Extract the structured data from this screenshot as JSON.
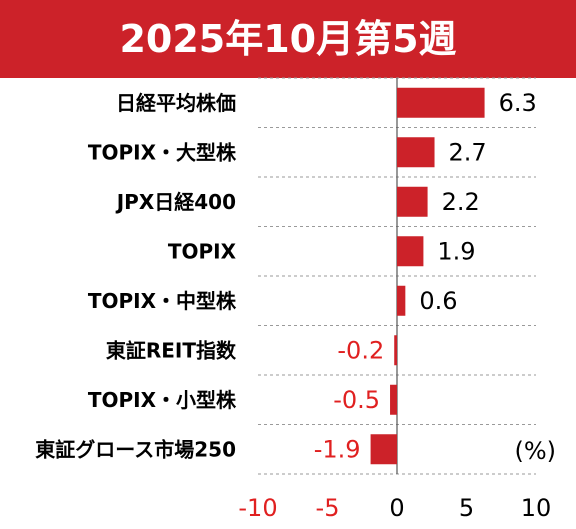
{
  "chart_data": {
    "type": "bar",
    "orientation": "horizontal",
    "title": "2025年10月第5週",
    "unit": "(%)",
    "categories": [
      "日経平均株価",
      "TOPIX・大型株",
      "JPX日経400",
      "TOPIX",
      "TOPIX・中型株",
      "東証REIT指数",
      "TOPIX・小型株",
      "東証グロース市場250"
    ],
    "values": [
      6.3,
      2.7,
      2.2,
      1.9,
      0.6,
      -0.2,
      -0.5,
      -1.9
    ],
    "value_labels": [
      "6.3",
      "2.7",
      "2.2",
      "1.9",
      "0.6",
      "-0.2",
      "-0.5",
      "-1.9"
    ],
    "xlim": [
      -10,
      10
    ],
    "xticks": [
      -10,
      -5,
      0,
      5,
      10
    ],
    "xtick_labels": [
      "-10",
      "-5",
      "0",
      "5",
      "10"
    ],
    "grid": "horizontal dashed",
    "colors": {
      "title_bg": "#cc2229",
      "title_text": "#ffffff",
      "bar": "#cc2229",
      "positive_label": "#000000",
      "negative_label": "#e02020",
      "negative_tick": "#e02020"
    }
  }
}
